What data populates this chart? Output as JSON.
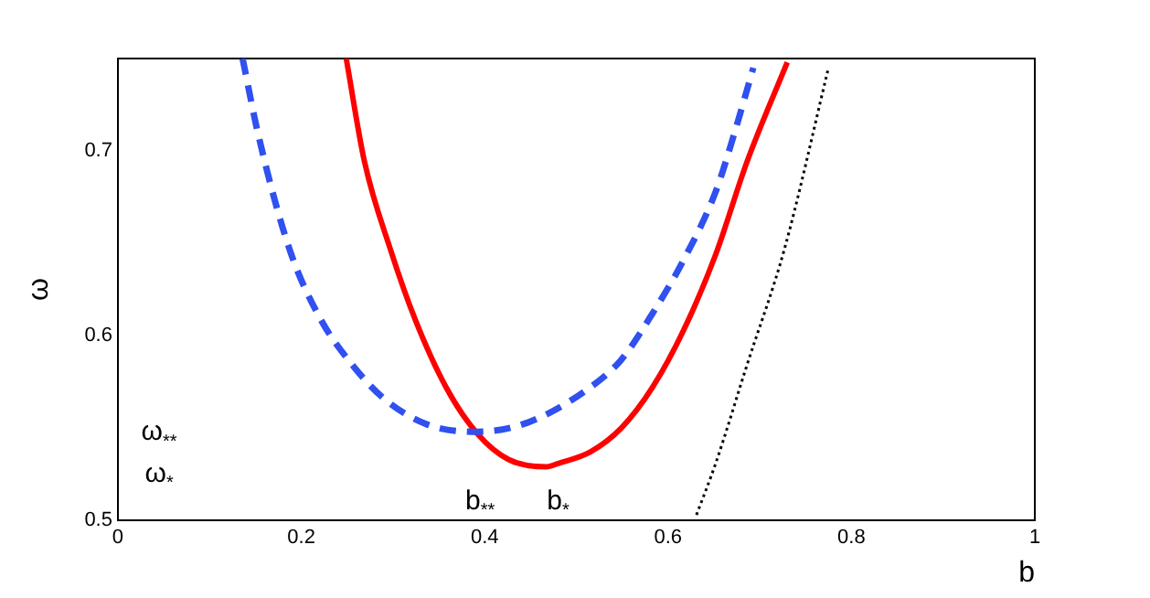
{
  "chart_data": {
    "type": "line",
    "xlabel": "b",
    "ylabel": "ω",
    "xlim": [
      0,
      1
    ],
    "xticks": [
      0,
      0.2,
      0.4,
      0.6,
      0.8,
      1
    ],
    "ylim": [
      0.5,
      0.75
    ],
    "yticks": [
      0.5,
      0.6,
      0.7
    ],
    "grid": false,
    "legend": false,
    "marker": "none",
    "series": [
      {
        "color": "#3050f0",
        "line_style": "dashed",
        "x": [
          0.136,
          0.153,
          0.187,
          0.221,
          0.256,
          0.29,
          0.337,
          0.392,
          0.447,
          0.515,
          0.549,
          0.583,
          0.617,
          0.652,
          0.672,
          0.693
        ],
        "values": [
          0.75,
          0.709,
          0.647,
          0.609,
          0.584,
          0.566,
          0.552,
          0.548,
          0.553,
          0.572,
          0.587,
          0.612,
          0.641,
          0.678,
          0.709,
          0.745
        ]
      },
      {
        "color": "#ff0000",
        "line_style": "solid",
        "x": [
          0.249,
          0.269,
          0.297,
          0.324,
          0.358,
          0.392,
          0.426,
          0.467,
          0.481,
          0.515,
          0.549,
          0.583,
          0.617,
          0.652,
          0.686,
          0.73
        ],
        "values": [
          0.75,
          0.694,
          0.647,
          0.609,
          0.572,
          0.547,
          0.533,
          0.529,
          0.531,
          0.537,
          0.55,
          0.572,
          0.603,
          0.644,
          0.694,
          0.748
        ]
      },
      {
        "color": "#000000",
        "line_style": "dotted",
        "x": [
          0.631,
          0.652,
          0.686,
          0.727,
          0.775
        ],
        "values": [
          0.503,
          0.531,
          0.584,
          0.647,
          0.745
        ]
      }
    ],
    "annotations": [
      "ω$_{**}$",
      "ω$_{*}$",
      "b$_{**}$",
      "b$_{*}$"
    ]
  }
}
